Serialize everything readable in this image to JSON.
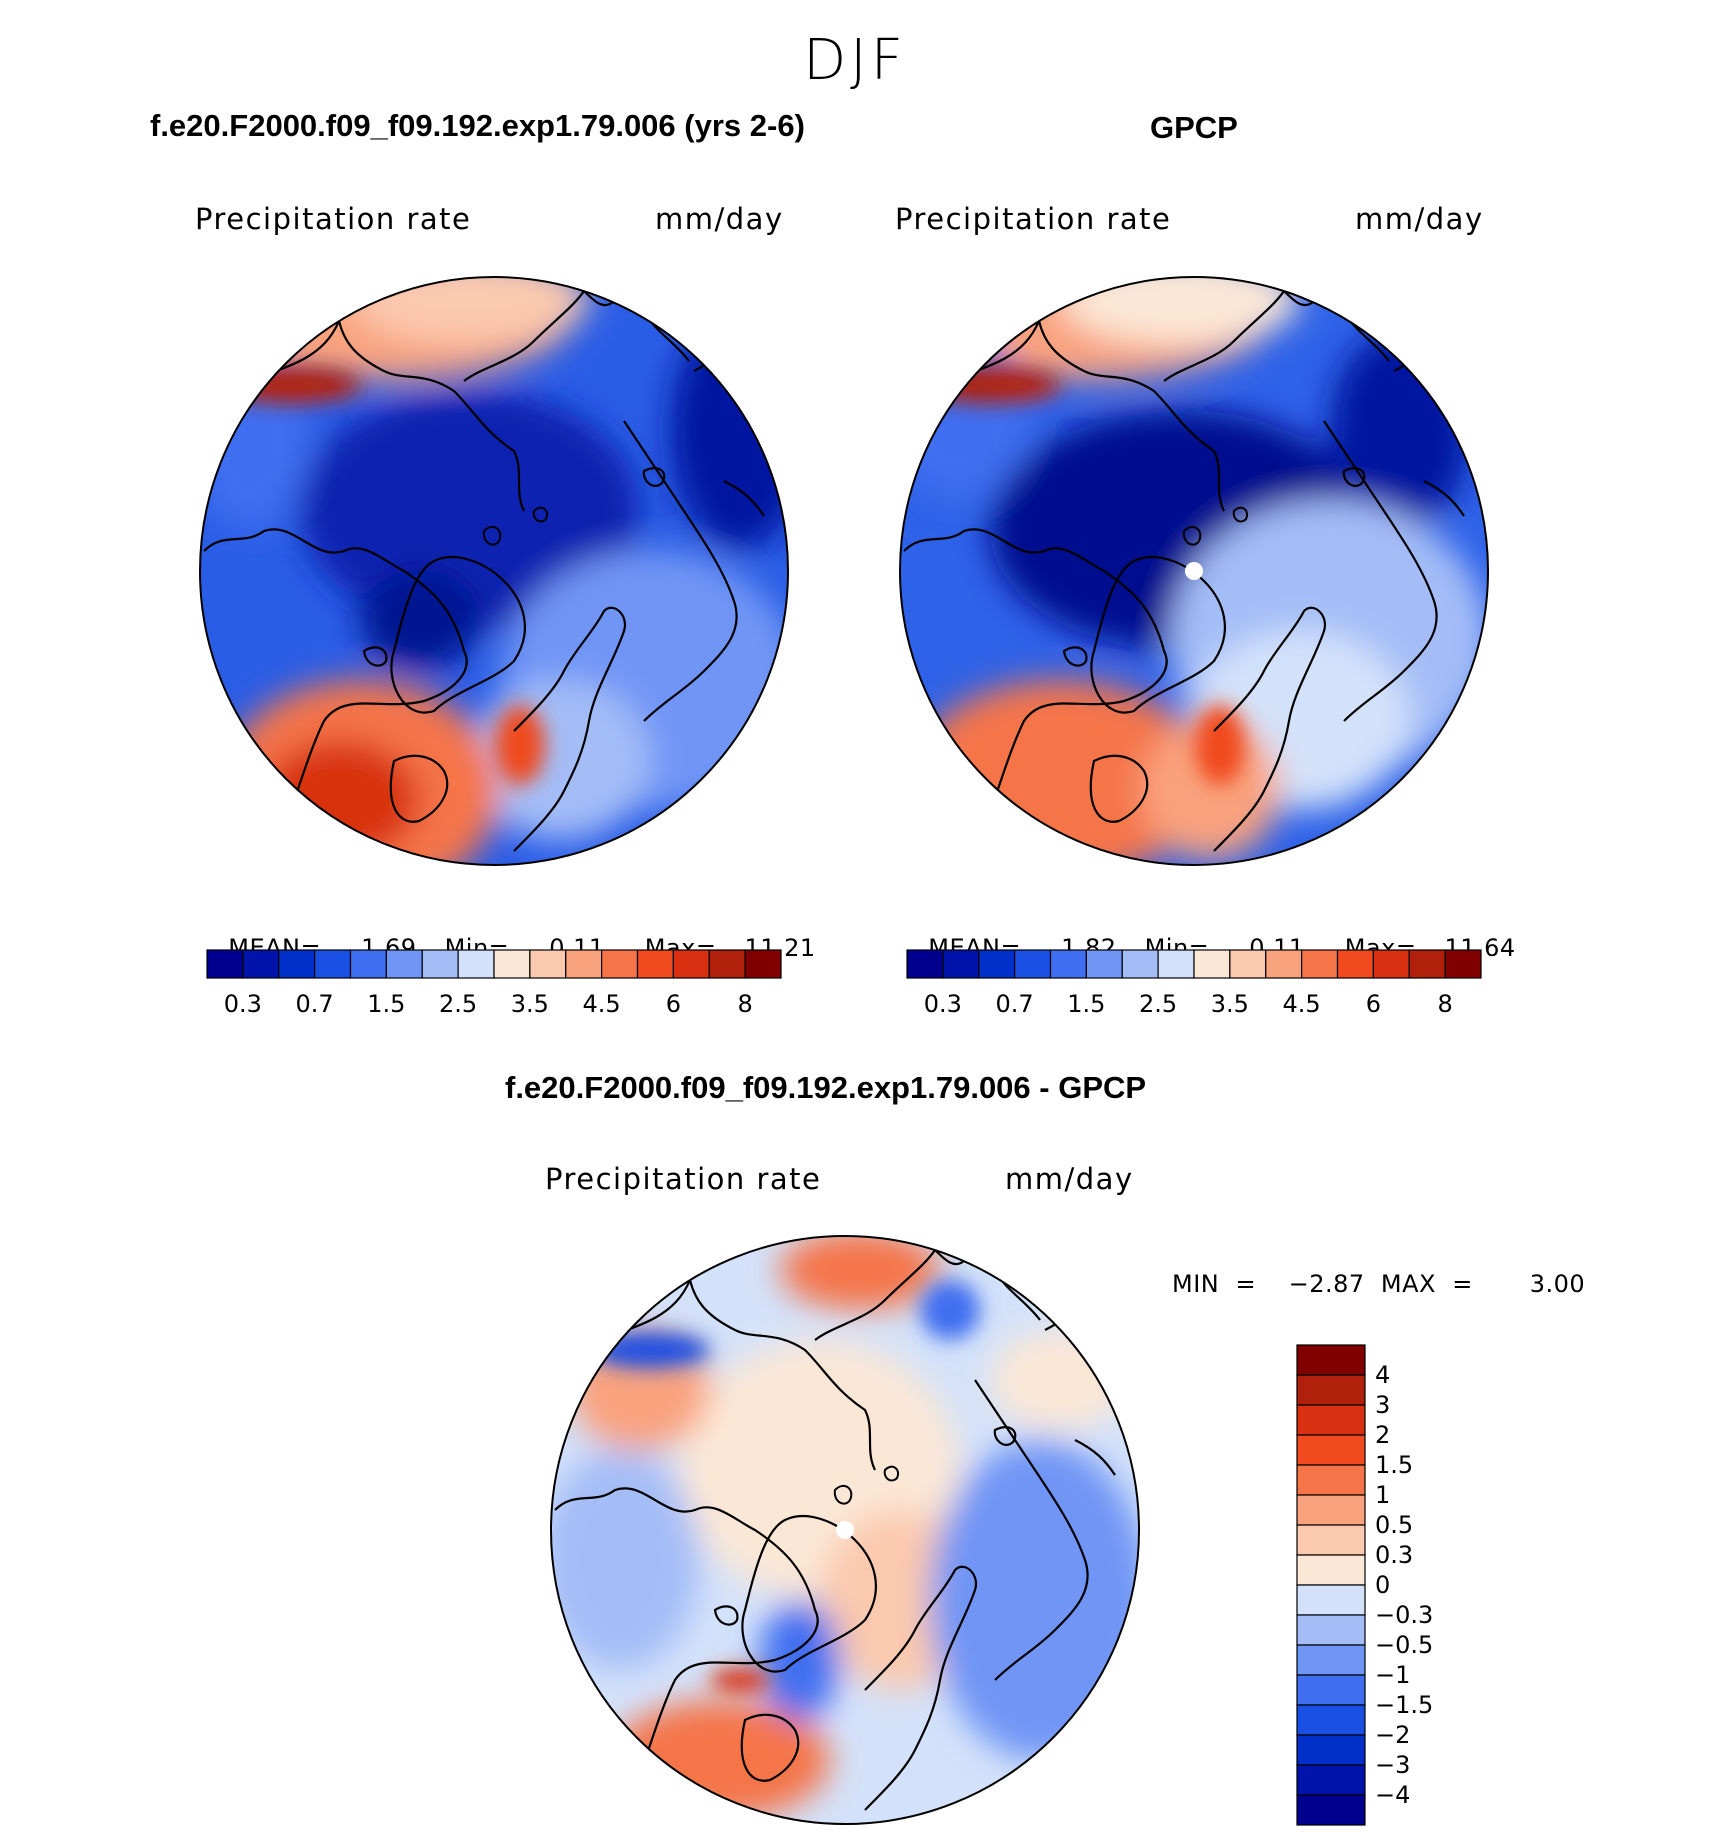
{
  "figure": {
    "title": "DJF"
  },
  "panels": [
    {
      "id": "model",
      "title": "f.e20.F2000.f09_f09.192.exp1.79.006 (yrs 2-6)",
      "left_label": "Precipitation  rate",
      "right_label": "mm/day",
      "stats": {
        "mean_label": "MEAN=",
        "mean": "1.69",
        "min_label": "Min=",
        "min": "0.11",
        "max_label": "Max=",
        "max": "11.21"
      }
    },
    {
      "id": "obs",
      "title": "GPCP",
      "left_label": "Precipitation  rate",
      "right_label": "mm/day",
      "stats": {
        "mean_label": "MEAN=",
        "mean": "1.82",
        "min_label": "Min=",
        "min": "0.11",
        "max_label": "Max=",
        "max": "11.64"
      }
    },
    {
      "id": "diff",
      "title": "f.e20.F2000.f09_f09.192.exp1.79.006 - GPCP",
      "left_label": "Precipitation  rate",
      "right_label": "mm/day",
      "stats_text": "MIN  =    −2.87  MAX  =       3.00"
    }
  ],
  "colorbars": {
    "absolute": {
      "orientation": "horizontal",
      "colors": [
        "#00008f",
        "#0013aa",
        "#0030c9",
        "#1a4fe3",
        "#3f6ef0",
        "#6f95f5",
        "#a4bdf7",
        "#d3e2fa",
        "#fbe7d6",
        "#fbc9ae",
        "#f9a27e",
        "#f57448",
        "#f04a1e",
        "#d83010",
        "#b0200a",
        "#800000"
      ],
      "tick_labels": [
        "0.3",
        "0.7",
        "1.5",
        "2.5",
        "3.5",
        "4.5",
        "6",
        "8"
      ]
    },
    "difference": {
      "orientation": "vertical",
      "colors": [
        "#800000",
        "#b0200a",
        "#d83010",
        "#f04a1e",
        "#f57448",
        "#f9a27e",
        "#fbc9ae",
        "#fbe7d6",
        "#d3e2fa",
        "#a4bdf7",
        "#6f95f5",
        "#3f6ef0",
        "#1a4fe3",
        "#0030c9",
        "#0013aa",
        "#00008f"
      ],
      "tick_labels": [
        "4",
        "3",
        "2",
        "1.5",
        "1",
        "0.5",
        "0.3",
        "0",
        "−0.3",
        "−0.5",
        "−1",
        "−1.5",
        "−2",
        "−3",
        "−4"
      ]
    }
  }
}
